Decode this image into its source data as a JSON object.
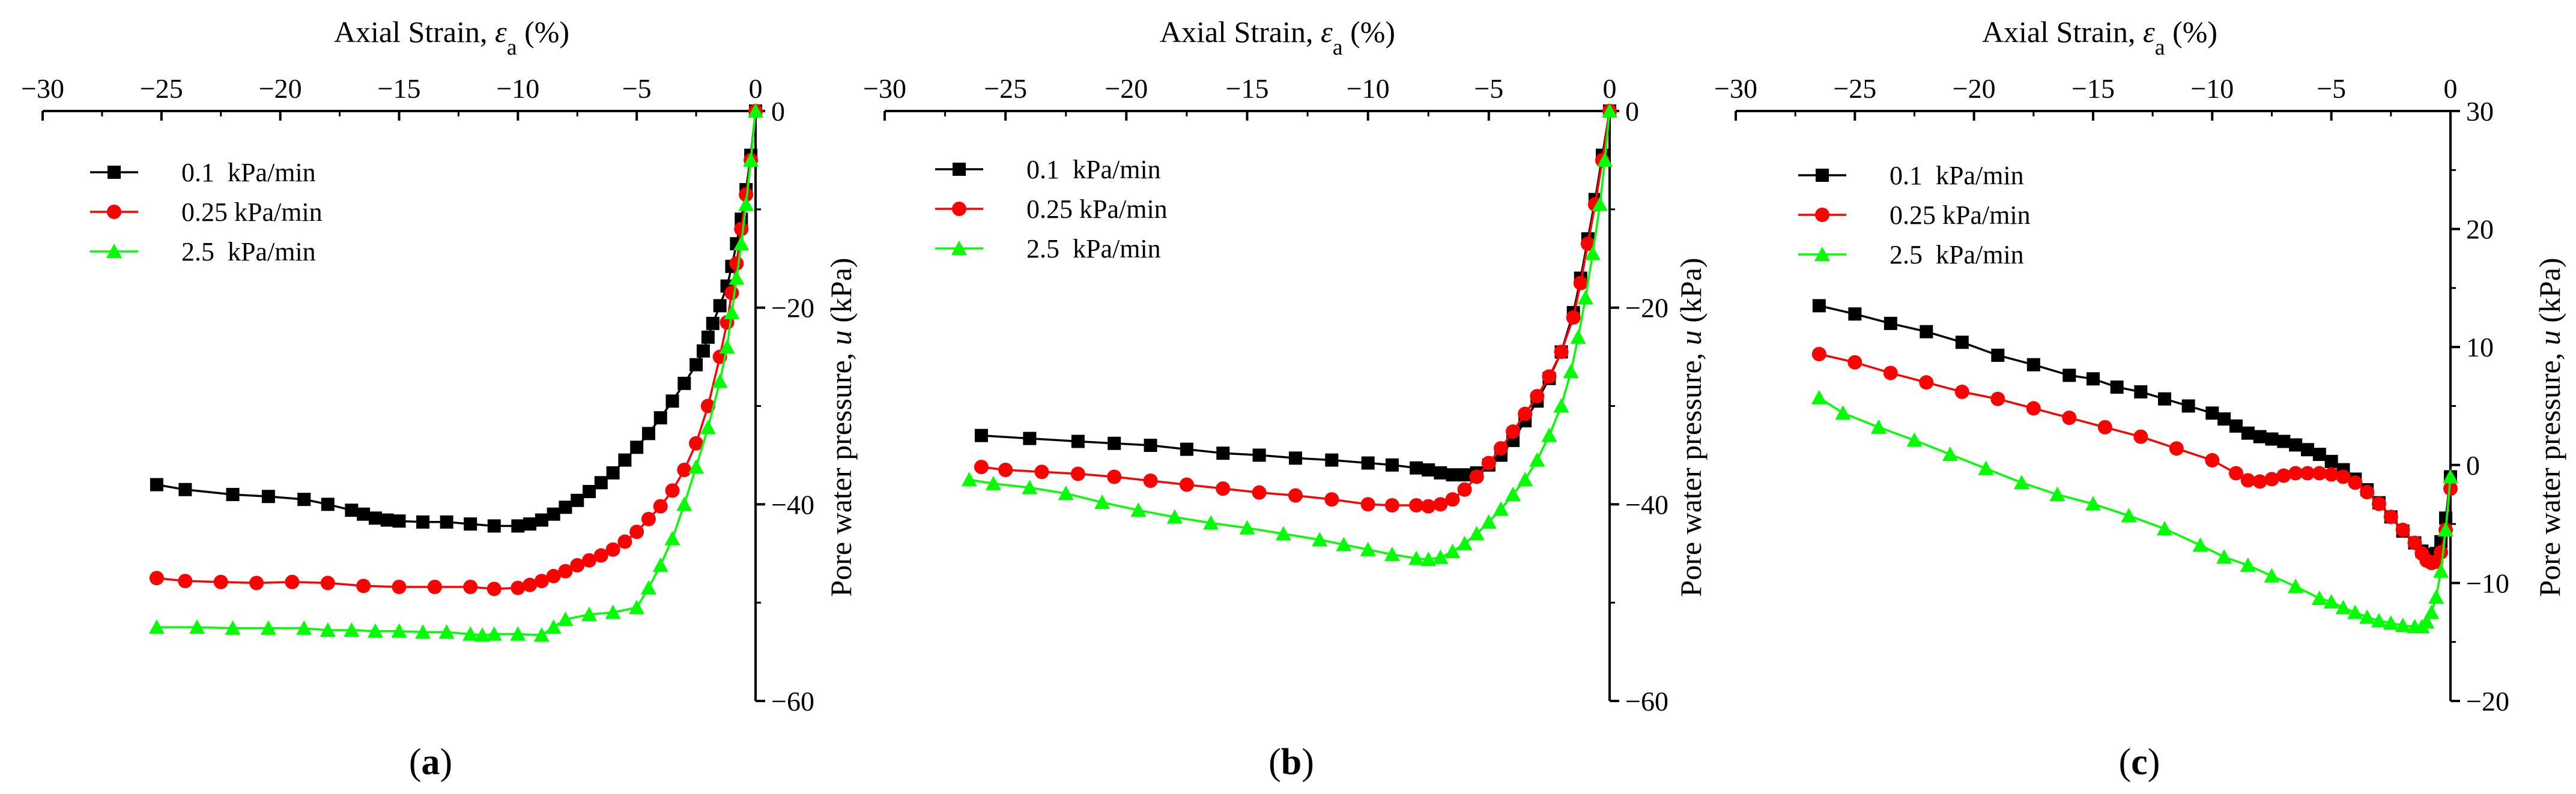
{
  "figure": {
    "panels": [
      {
        "label": "(a)",
        "bold_letter": "a"
      },
      {
        "label": "(b)",
        "bold_letter": "b"
      },
      {
        "label": "(c)",
        "bold_letter": "c"
      }
    ]
  },
  "chart_data": [
    {
      "panel": "a",
      "type": "line",
      "xlabel": "Axial Strain, εa (%)",
      "xlabel_main": "Axial Strain, ",
      "xlabel_symbol": "ε",
      "xlabel_sub": "a",
      "xlabel_unit": " (%)",
      "ylabel": "Pore water pressure, u (kPa)",
      "ylabel_main": "Pore water pressure, ",
      "ylabel_symbol": "u",
      "ylabel_unit": " (kPa)",
      "xlim": [
        -30,
        0
      ],
      "ylim": [
        -60,
        0
      ],
      "xticks": [
        -30,
        -25,
        -20,
        -15,
        -10,
        -5,
        0
      ],
      "yticks": [
        0,
        -20,
        -40,
        -60
      ],
      "legend_position": "top-left",
      "series": [
        {
          "name": "0.1  kPa/min",
          "color": "#000000",
          "marker": "square",
          "x": [
            -25.2,
            -24,
            -22,
            -20.5,
            -19,
            -18,
            -17,
            -16.5,
            -16,
            -15.5,
            -15,
            -14,
            -13,
            -12,
            -11,
            -10,
            -9.5,
            -9,
            -8.5,
            -8,
            -7.5,
            -7,
            -6.5,
            -6,
            -5.5,
            -5,
            -4.5,
            -4,
            -3.5,
            -3,
            -2.5,
            -2.2,
            -2,
            -1.8,
            -1.5,
            -1.2,
            -1,
            -0.8,
            -0.6,
            -0.4,
            -0.2,
            0
          ],
          "y": [
            -38,
            -38.5,
            -39,
            -39.2,
            -39.5,
            -40,
            -40.6,
            -41,
            -41.4,
            -41.6,
            -41.7,
            -41.8,
            -41.8,
            -42,
            -42.2,
            -42.2,
            -42,
            -41.6,
            -41,
            -40.3,
            -39.6,
            -38.7,
            -37.8,
            -36.8,
            -35.5,
            -34.2,
            -32.8,
            -31.2,
            -29.5,
            -27.7,
            -25.8,
            -24.4,
            -23,
            -21.6,
            -19.8,
            -17.8,
            -15.8,
            -13.5,
            -11,
            -8,
            -4.5,
            0
          ]
        },
        {
          "name": "0.25 kPa/min",
          "color": "#ff0000",
          "marker": "circle",
          "x": [
            -25.2,
            -24,
            -22.5,
            -21,
            -19.5,
            -18,
            -16.5,
            -15,
            -13.5,
            -12,
            -11,
            -10,
            -9.5,
            -9,
            -8.5,
            -8,
            -7.5,
            -7,
            -6.5,
            -6,
            -5.5,
            -5,
            -4.5,
            -4,
            -3.5,
            -3,
            -2.5,
            -2,
            -1.5,
            -1.2,
            -1,
            -0.8,
            -0.6,
            -0.4,
            -0.2,
            0
          ],
          "y": [
            -47.5,
            -47.8,
            -47.9,
            -48,
            -47.9,
            -48,
            -48.3,
            -48.4,
            -48.4,
            -48.4,
            -48.6,
            -48.5,
            -48.2,
            -47.8,
            -47.3,
            -46.8,
            -46.2,
            -45.7,
            -45.2,
            -44.6,
            -43.8,
            -42.8,
            -41.5,
            -40.2,
            -38.6,
            -36.5,
            -33.8,
            -30,
            -25,
            -21.5,
            -18.5,
            -15.5,
            -12,
            -8.5,
            -5,
            0
          ]
        },
        {
          "name": "2.5  kPa/min",
          "color": "#00ff00",
          "marker": "triangle",
          "x": [
            -25.2,
            -23.5,
            -22,
            -20.5,
            -19,
            -18,
            -17,
            -16,
            -15,
            -14,
            -13,
            -12,
            -11.5,
            -11,
            -10,
            -9,
            -8.5,
            -8,
            -7,
            -6,
            -5,
            -4.5,
            -4,
            -3.5,
            -3,
            -2.5,
            -2,
            -1.5,
            -1.2,
            -1,
            -0.8,
            -0.6,
            -0.4,
            -0.2,
            0
          ],
          "y": [
            -52.5,
            -52.5,
            -52.6,
            -52.6,
            -52.6,
            -52.8,
            -52.8,
            -52.9,
            -52.9,
            -53,
            -53,
            -53.2,
            -53.3,
            -53.2,
            -53.2,
            -53.3,
            -52.5,
            -51.7,
            -51.2,
            -51,
            -50.5,
            -48.5,
            -46.2,
            -43.5,
            -40,
            -36.2,
            -32.2,
            -27.5,
            -24,
            -20.5,
            -17,
            -13.5,
            -9.5,
            -5,
            0
          ]
        }
      ]
    },
    {
      "panel": "b",
      "type": "line",
      "xlabel": "Axial Strain, εa (%)",
      "xlabel_main": "Axial Strain, ",
      "xlabel_symbol": "ε",
      "xlabel_sub": "a",
      "xlabel_unit": " (%)",
      "ylabel": "Pore water pressure, u (kPa)",
      "ylabel_main": "Pore water pressure, ",
      "ylabel_symbol": "u",
      "ylabel_unit": " (kPa)",
      "xlim": [
        -30,
        0
      ],
      "ylim": [
        -60,
        0
      ],
      "xticks": [
        -30,
        -25,
        -20,
        -15,
        -10,
        -5,
        0
      ],
      "yticks": [
        0,
        -20,
        -40,
        -60
      ],
      "legend_position": "top-left",
      "series": [
        {
          "name": "0.1  kPa/min",
          "color": "#000000",
          "marker": "square",
          "x": [
            -26,
            -24,
            -22,
            -20.5,
            -19,
            -17.5,
            -16,
            -14.5,
            -13,
            -11.5,
            -10,
            -9,
            -8,
            -7.5,
            -7,
            -6.5,
            -6,
            -5.5,
            -5,
            -4.5,
            -4,
            -3.5,
            -3,
            -2.5,
            -2,
            -1.5,
            -1.2,
            -0.9,
            -0.6,
            -0.3,
            0
          ],
          "y": [
            -33,
            -33.3,
            -33.6,
            -33.8,
            -34,
            -34.4,
            -34.8,
            -35,
            -35.3,
            -35.5,
            -35.8,
            -36,
            -36.3,
            -36.5,
            -36.8,
            -37,
            -37,
            -36.8,
            -36,
            -35,
            -33.5,
            -31.5,
            -29.5,
            -27.2,
            -24.5,
            -20.5,
            -17,
            -13,
            -9,
            -4.5,
            0
          ]
        },
        {
          "name": "0.25 kPa/min",
          "color": "#ff0000",
          "marker": "circle",
          "x": [
            -26,
            -25,
            -23.5,
            -22,
            -20.5,
            -19,
            -17.5,
            -16,
            -14.5,
            -13,
            -11.5,
            -10,
            -9,
            -8,
            -7.5,
            -7,
            -6.5,
            -6,
            -5.5,
            -5,
            -4.5,
            -4,
            -3.5,
            -3,
            -2.5,
            -2,
            -1.5,
            -1.2,
            -0.9,
            -0.6,
            -0.3,
            0
          ],
          "y": [
            -36.2,
            -36.5,
            -36.7,
            -36.9,
            -37.2,
            -37.6,
            -38,
            -38.4,
            -38.8,
            -39.1,
            -39.5,
            -40,
            -40.1,
            -40.1,
            -40.2,
            -40,
            -39.5,
            -38.5,
            -37.2,
            -35.8,
            -34.3,
            -32.6,
            -30.8,
            -29,
            -27,
            -24.5,
            -21,
            -17.5,
            -13.5,
            -9.5,
            -5,
            0
          ]
        },
        {
          "name": "2.5  kPa/min",
          "color": "#00ff00",
          "marker": "triangle",
          "x": [
            -26.5,
            -25.5,
            -24,
            -22.5,
            -21,
            -19.5,
            -18,
            -16.5,
            -15,
            -13.5,
            -12,
            -11,
            -10,
            -9,
            -8,
            -7.5,
            -7,
            -6.5,
            -6,
            -5.5,
            -5,
            -4.5,
            -4,
            -3.5,
            -3,
            -2.5,
            -2,
            -1.6,
            -1.3,
            -1,
            -0.7,
            -0.4,
            -0.2,
            0
          ],
          "y": [
            -37.5,
            -37.9,
            -38.3,
            -38.9,
            -39.8,
            -40.6,
            -41.3,
            -41.9,
            -42.4,
            -43,
            -43.6,
            -44.1,
            -44.6,
            -45.1,
            -45.5,
            -45.6,
            -45.4,
            -44.8,
            -44,
            -43,
            -41.8,
            -40.5,
            -39,
            -37.5,
            -35.5,
            -33,
            -30,
            -26.5,
            -23,
            -19,
            -14.5,
            -9.5,
            -5,
            0
          ]
        }
      ]
    },
    {
      "panel": "c",
      "type": "line",
      "xlabel": "Axial Strain, εa (%)",
      "xlabel_main": "Axial Strain, ",
      "xlabel_symbol": "ε",
      "xlabel_sub": "a",
      "xlabel_unit": " (%)",
      "ylabel": "Pore water pressure, u (kPa)",
      "ylabel_main": "Pore water pressure, ",
      "ylabel_symbol": "u",
      "ylabel_unit": " (kPa)",
      "xlim": [
        -30,
        0
      ],
      "ylim": [
        -20,
        30
      ],
      "xticks": [
        -30,
        -25,
        -20,
        -15,
        -10,
        -5,
        0
      ],
      "yticks": [
        30,
        20,
        10,
        0,
        -10,
        -20
      ],
      "legend_position": "top-left",
      "series": [
        {
          "name": "0.1  kPa/min",
          "color": "#000000",
          "marker": "square",
          "x": [
            -26.5,
            -25,
            -23.5,
            -22,
            -20.5,
            -19,
            -17.5,
            -16,
            -15,
            -14,
            -13,
            -12,
            -11,
            -10,
            -9.5,
            -9,
            -8.5,
            -8,
            -7.5,
            -7,
            -6.5,
            -6,
            -5.5,
            -5,
            -4.5,
            -4,
            -3.5,
            -3,
            -2.5,
            -2,
            -1.5,
            -1.2,
            -1,
            -0.8,
            -0.6,
            -0.4,
            -0.2,
            0
          ],
          "y": [
            13.5,
            12.8,
            12,
            11.3,
            10.4,
            9.3,
            8.5,
            7.6,
            7.3,
            6.6,
            6.2,
            5.6,
            5,
            4.4,
            3.9,
            3.3,
            2.7,
            2.4,
            2.2,
            2,
            1.7,
            1.3,
            0.9,
            0.3,
            -0.4,
            -1.2,
            -2.1,
            -3.2,
            -4.4,
            -5.6,
            -6.6,
            -7.3,
            -7.6,
            -7.8,
            -7.5,
            -6.5,
            -4.5,
            -1
          ]
        },
        {
          "name": "0.25 kPa/min",
          "color": "#ff0000",
          "marker": "circle",
          "x": [
            -26.5,
            -25,
            -23.5,
            -22,
            -20.5,
            -19,
            -17.5,
            -16,
            -14.5,
            -13,
            -11.5,
            -10,
            -9,
            -8.5,
            -8,
            -7.5,
            -7,
            -6.5,
            -6,
            -5.5,
            -5,
            -4.5,
            -4,
            -3.5,
            -3,
            -2.5,
            -2,
            -1.5,
            -1.2,
            -1,
            -0.8,
            -0.6,
            -0.4,
            -0.2,
            0
          ],
          "y": [
            9.4,
            8.7,
            7.8,
            7,
            6.2,
            5.6,
            4.8,
            4,
            3.2,
            2.4,
            1.4,
            0.4,
            -0.7,
            -1.3,
            -1.4,
            -1.2,
            -0.9,
            -0.7,
            -0.7,
            -0.7,
            -0.8,
            -1,
            -1.5,
            -2.3,
            -3.3,
            -4.4,
            -5.5,
            -6.6,
            -7.5,
            -8.1,
            -8.3,
            -8.2,
            -7.4,
            -5.5,
            -2
          ]
        },
        {
          "name": "2.5  kPa/min",
          "color": "#00ff00",
          "marker": "triangle",
          "x": [
            -26.5,
            -25.5,
            -24,
            -22.5,
            -21,
            -19.5,
            -18,
            -16.5,
            -15,
            -13.5,
            -12,
            -10.5,
            -9.5,
            -8.5,
            -7.5,
            -6.5,
            -5.5,
            -5,
            -4.5,
            -4,
            -3.5,
            -3,
            -2.5,
            -2,
            -1.5,
            -1.2,
            -1,
            -0.8,
            -0.6,
            -0.4,
            -0.2,
            0
          ],
          "y": [
            5.7,
            4.4,
            3.2,
            2.1,
            0.9,
            -0.3,
            -1.5,
            -2.5,
            -3.3,
            -4.3,
            -5.4,
            -6.8,
            -7.8,
            -8.5,
            -9.4,
            -10.3,
            -11.3,
            -11.6,
            -12.1,
            -12.5,
            -12.9,
            -13.2,
            -13.4,
            -13.6,
            -13.7,
            -13.7,
            -13.3,
            -12.5,
            -11.2,
            -9,
            -5.5,
            -1
          ]
        }
      ]
    }
  ]
}
